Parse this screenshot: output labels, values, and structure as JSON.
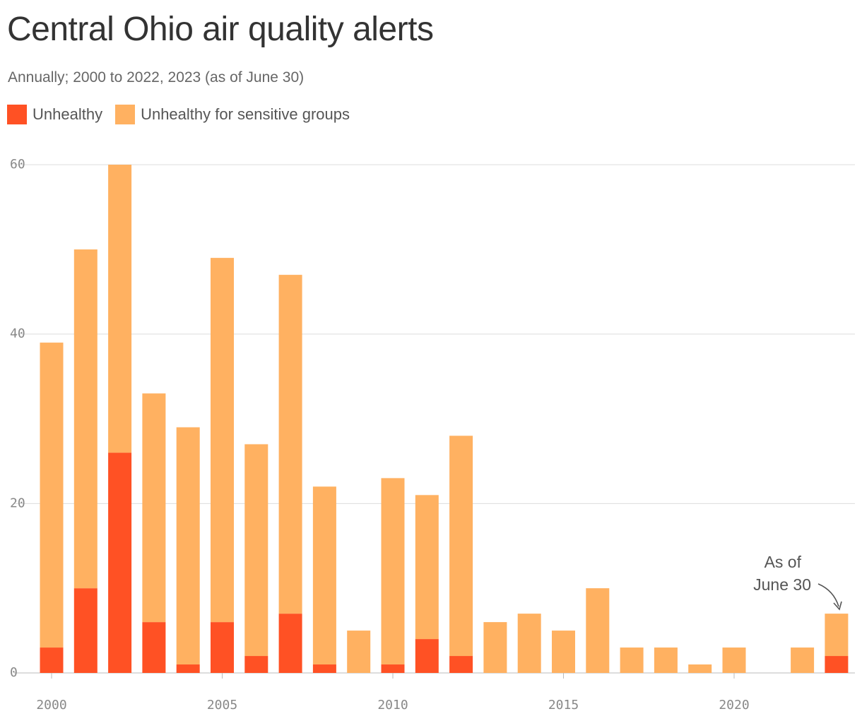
{
  "title": "Central Ohio air quality alerts",
  "subtitle": "Annually; 2000 to 2022, 2023 (as of June 30)",
  "legend": [
    {
      "label": "Unhealthy",
      "color": "#ff5124"
    },
    {
      "label": "Unhealthy for sensitive groups",
      "color": "#ffb161"
    }
  ],
  "annotation": {
    "line1": "As of",
    "line2": "June 30"
  },
  "chart_data": {
    "type": "bar",
    "stacked": true,
    "categories": [
      2000,
      2001,
      2002,
      2003,
      2004,
      2005,
      2006,
      2007,
      2008,
      2009,
      2010,
      2011,
      2012,
      2013,
      2014,
      2015,
      2016,
      2017,
      2018,
      2019,
      2020,
      2021,
      2022,
      2023
    ],
    "series": [
      {
        "name": "Unhealthy",
        "color": "#ff5124",
        "values": [
          3,
          10,
          26,
          6,
          1,
          6,
          2,
          7,
          1,
          0,
          1,
          4,
          2,
          0,
          0,
          0,
          0,
          0,
          0,
          0,
          0,
          0,
          0,
          2
        ]
      },
      {
        "name": "Unhealthy for sensitive groups",
        "color": "#ffb161",
        "values": [
          36,
          40,
          34,
          27,
          28,
          43,
          25,
          40,
          21,
          5,
          22,
          17,
          26,
          6,
          7,
          5,
          10,
          3,
          3,
          1,
          3,
          0,
          3,
          5
        ]
      }
    ],
    "ylim": [
      0,
      60
    ],
    "yticks": [
      0,
      20,
      40,
      60
    ],
    "xticks": [
      2000,
      2005,
      2010,
      2015,
      2020
    ],
    "grid": true,
    "legend_position": "top-left"
  }
}
